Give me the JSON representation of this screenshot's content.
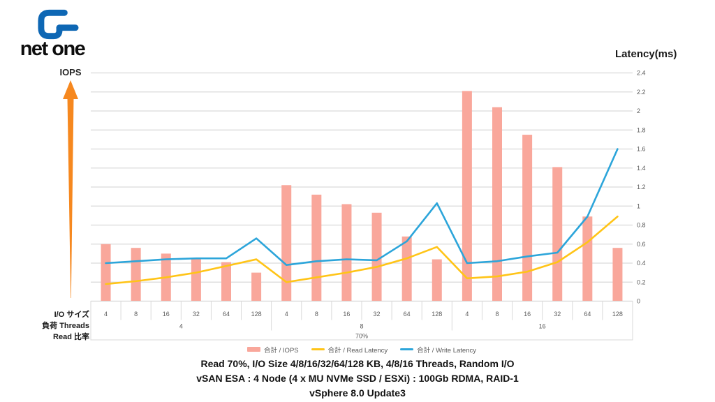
{
  "logo": {
    "text": "net one",
    "brand_color": "#0E67B4"
  },
  "left_axis": {
    "label": "IOPS",
    "arrow_color": "#F6881F"
  },
  "row_labels": {
    "io_size": "I/O サイズ",
    "threads": "負荷 Threads",
    "read_ratio": "Read 比率"
  },
  "caption": {
    "line1": "Read 70%, I/O Size 4/8/16/32/64/128 KB, 4/8/16 Threads, Random I/O",
    "line2": "vSAN ESA : 4 Node (4 x MU NVMe SSD / ESXi) : 100Gb RDMA, RAID-1",
    "line3": "vSphere 8.0 Update3"
  },
  "chart_data": {
    "type": "bar",
    "subtype": "combo bar+line, dual axis",
    "title": "",
    "categories_io_size_kb": [
      "4",
      "8",
      "16",
      "32",
      "64",
      "128",
      "4",
      "8",
      "16",
      "32",
      "64",
      "128",
      "4",
      "8",
      "16",
      "32",
      "64",
      "128"
    ],
    "thread_groups": [
      {
        "threads": "4",
        "span": 6
      },
      {
        "threads": "8",
        "span": 6
      },
      {
        "threads": "16",
        "span": 6
      }
    ],
    "read_ratio": "70%",
    "left_axis": {
      "label": "IOPS",
      "numeric_scale_shown": false
    },
    "right_axis": {
      "label": "Latency(ms)",
      "min": 0,
      "max": 2.4,
      "tick_step": 0.2
    },
    "grid": true,
    "legend_position": "bottom",
    "series": [
      {
        "name": "合計 / IOPS",
        "type": "bar",
        "axis": "left",
        "color": "#F9A79B",
        "note": "left IOPS axis shows no numbers; bar heights recorded in right-axis (ms) units as drawn",
        "values": [
          0.6,
          0.56,
          0.5,
          0.45,
          0.41,
          0.3,
          1.22,
          1.12,
          1.02,
          0.93,
          0.68,
          0.44,
          2.21,
          2.04,
          1.75,
          1.41,
          0.89,
          0.56
        ]
      },
      {
        "name": "合計 / Read Latency",
        "type": "line",
        "axis": "right",
        "unit": "ms",
        "color": "#FFC417",
        "values": [
          0.18,
          0.21,
          0.25,
          0.3,
          0.37,
          0.44,
          0.2,
          0.25,
          0.3,
          0.36,
          0.45,
          0.57,
          0.24,
          0.26,
          0.31,
          0.41,
          0.62,
          0.89
        ]
      },
      {
        "name": "合計 / Write Latency",
        "type": "line",
        "axis": "right",
        "unit": "ms",
        "color": "#2CA5DA",
        "values": [
          0.4,
          0.42,
          0.44,
          0.45,
          0.45,
          0.66,
          0.38,
          0.42,
          0.44,
          0.43,
          0.63,
          1.03,
          0.4,
          0.42,
          0.47,
          0.51,
          0.89,
          1.6
        ]
      }
    ]
  }
}
